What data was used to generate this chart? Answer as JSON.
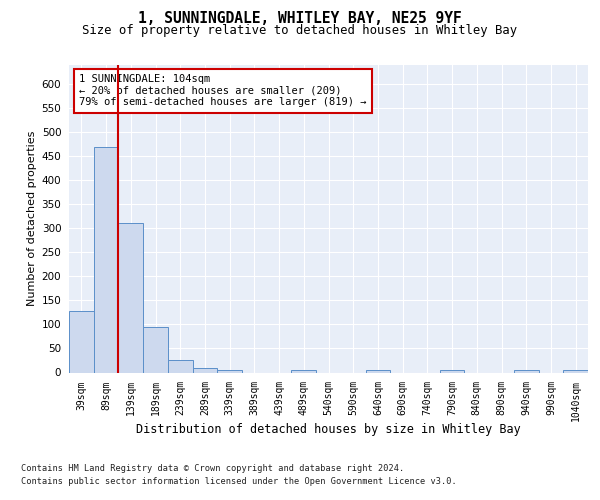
{
  "title1": "1, SUNNINGDALE, WHITLEY BAY, NE25 9YF",
  "title2": "Size of property relative to detached houses in Whitley Bay",
  "xlabel": "Distribution of detached houses by size in Whitley Bay",
  "ylabel": "Number of detached properties",
  "bar_labels": [
    "39sqm",
    "89sqm",
    "139sqm",
    "189sqm",
    "239sqm",
    "289sqm",
    "339sqm",
    "389sqm",
    "439sqm",
    "489sqm",
    "540sqm",
    "590sqm",
    "640sqm",
    "690sqm",
    "740sqm",
    "790sqm",
    "840sqm",
    "890sqm",
    "940sqm",
    "990sqm",
    "1040sqm"
  ],
  "bar_values": [
    128,
    470,
    311,
    95,
    26,
    10,
    6,
    0,
    0,
    5,
    0,
    0,
    5,
    0,
    0,
    5,
    0,
    0,
    5,
    0,
    5
  ],
  "bar_color": "#cdd9ee",
  "bar_edge_color": "#5b8fc9",
  "red_line_x": 1.5,
  "annotation_text": "1 SUNNINGDALE: 104sqm\n← 20% of detached houses are smaller (209)\n79% of semi-detached houses are larger (819) →",
  "annotation_box_color": "#ffffff",
  "annotation_box_edge": "#cc0000",
  "red_line_color": "#cc0000",
  "ylim": [
    0,
    640
  ],
  "yticks": [
    0,
    50,
    100,
    150,
    200,
    250,
    300,
    350,
    400,
    450,
    500,
    550,
    600
  ],
  "footer1": "Contains HM Land Registry data © Crown copyright and database right 2024.",
  "footer2": "Contains public sector information licensed under the Open Government Licence v3.0.",
  "grid_color": "#c8d4e8",
  "plot_bg_color": "#e8eef8"
}
